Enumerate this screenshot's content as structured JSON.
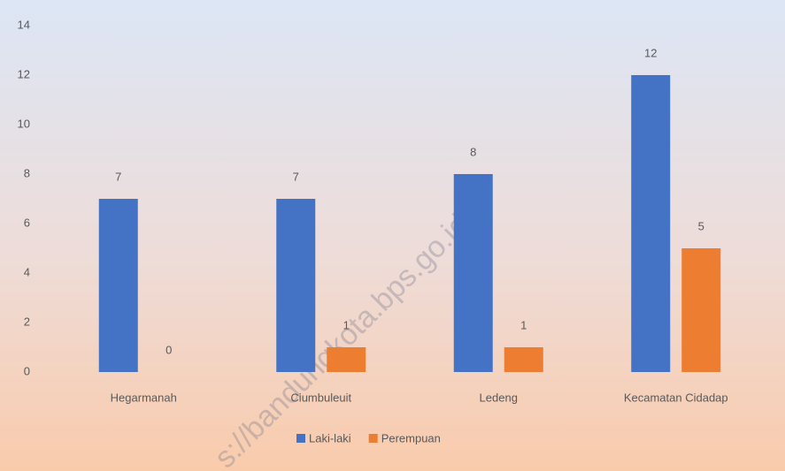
{
  "chart_data": {
    "type": "bar",
    "categories": [
      "Hegarmanah",
      "Ciumbuleuit",
      "Ledeng",
      "Kecamatan Cidadap"
    ],
    "series": [
      {
        "name": "Laki-laki",
        "color": "#4472c4",
        "values": [
          7,
          7,
          8,
          12
        ]
      },
      {
        "name": "Perempuan",
        "color": "#ed7d31",
        "values": [
          0,
          1,
          1,
          5
        ]
      }
    ],
    "ylim": [
      0,
      14
    ],
    "yticks": [
      0,
      2,
      4,
      6,
      8,
      10,
      12,
      14
    ],
    "grid": false,
    "legend": "bottom",
    "watermark": "s://bandungkota.bps.go.id"
  }
}
